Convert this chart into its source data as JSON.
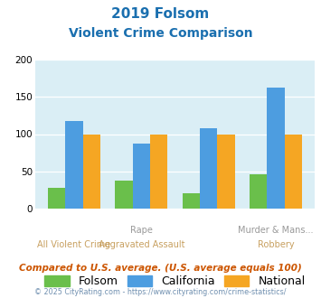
{
  "title_line1": "2019 Folsom",
  "title_line2": "Violent Crime Comparison",
  "top_labels": [
    "",
    "Rape",
    "",
    "Murder & Mans..."
  ],
  "bot_labels": [
    "All Violent Crime",
    "Aggravated Assault",
    "",
    "Robbery"
  ],
  "folsom": [
    28,
    37,
    21,
    46
  ],
  "california": [
    117,
    87,
    108,
    162
  ],
  "national": [
    100,
    100,
    100,
    100
  ],
  "folsom_color": "#6abf4b",
  "california_color": "#4d9de0",
  "national_color": "#f5a623",
  "bg_color": "#daeef5",
  "title_color": "#1a6faf",
  "top_label_color": "#999999",
  "bot_label_color": "#c8a060",
  "ylim": [
    0,
    200
  ],
  "yticks": [
    0,
    50,
    100,
    150,
    200
  ],
  "footer_text": "Compared to U.S. average. (U.S. average equals 100)",
  "copyright_text": "© 2025 CityRating.com - https://www.cityrating.com/crime-statistics/",
  "legend_labels": [
    "Folsom",
    "California",
    "National"
  ]
}
